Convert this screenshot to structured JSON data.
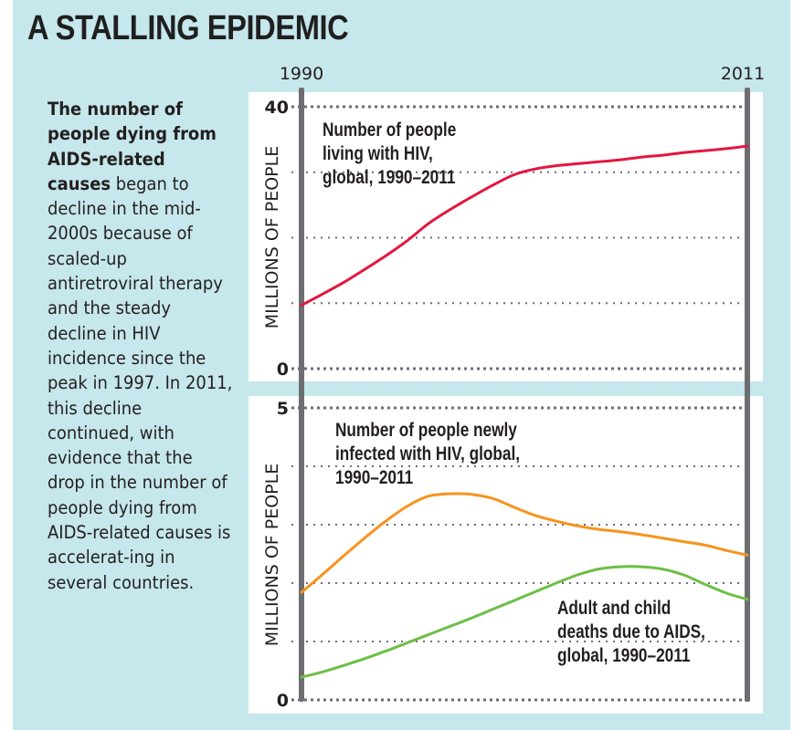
{
  "title": "A STALLING EPIDEMIC",
  "sidebar": {
    "bold_lead": "The number of people dying from AIDS-related causes",
    "body": " began to decline in the mid-2000s because of scaled-up antiretroviral therapy and the steady decline in HIV incidence since the peak in 1997. In 2011, this decline continued, with evidence that the drop in the number of people dying from AIDS-related causes is accelerat-ing in several countries."
  },
  "colors": {
    "background": "#c6e7eb",
    "panel": "#ffffff",
    "year_bar": "#6d6e71",
    "gridline": "#6d6e71",
    "living_with_hiv": "#e3173e",
    "new_infections": "#f7941d",
    "deaths": "#6cbe45",
    "text": "#231f20"
  },
  "chart_data": [
    {
      "type": "line",
      "title": "Number of people living with HIV, global, 1990–2011",
      "xlabel": "",
      "ylabel": "MILLIONS OF PEOPLE",
      "x_tick_labels": [
        "1990",
        "2011"
      ],
      "xlim": [
        1990,
        2011
      ],
      "ylim": [
        0,
        40
      ],
      "y_tick_labels": [
        "40",
        "0"
      ],
      "gridlines": [
        0,
        10,
        20,
        30,
        40
      ],
      "grid": true,
      "legend": "none",
      "annotations": [
        {
          "lines": [
            "Number of people",
            "living with HIV,",
            "global, 1990–2011"
          ],
          "placement": "top-left"
        }
      ],
      "x": [
        1990,
        1991,
        1992,
        1993,
        1994,
        1995,
        1996,
        1997,
        1998,
        1999,
        2000,
        2001,
        2002,
        2003,
        2004,
        2005,
        2006,
        2007,
        2008,
        2009,
        2010,
        2011
      ],
      "series": [
        {
          "name": "Number of people living with HIV",
          "color_key": "living_with_hiv",
          "values": [
            9.7,
            11.4,
            13.2,
            15.2,
            17.3,
            19.6,
            22.2,
            24.3,
            26.2,
            28.0,
            29.6,
            30.5,
            31.0,
            31.3,
            31.6,
            31.9,
            32.3,
            32.6,
            33.0,
            33.3,
            33.6,
            34.0
          ]
        }
      ]
    },
    {
      "type": "line",
      "title": "",
      "xlabel": "",
      "ylabel": "MILLIONS OF PEOPLE",
      "xlim": [
        1990,
        2011
      ],
      "ylim": [
        0,
        5
      ],
      "y_tick_labels": [
        "5",
        "0"
      ],
      "gridlines": [
        0,
        1,
        2,
        3,
        4,
        5
      ],
      "grid": true,
      "legend": "none",
      "annotations": [
        {
          "lines": [
            "Number of people newly",
            "infected with HIV, global,",
            "1990–2011"
          ],
          "placement": "top-center"
        },
        {
          "lines": [
            "Adult and child",
            "deaths due to AIDS,",
            "global, 1990–2011"
          ],
          "placement": "bottom-right"
        }
      ],
      "x": [
        1990,
        1991,
        1992,
        1993,
        1994,
        1995,
        1996,
        1997,
        1998,
        1999,
        2000,
        2001,
        2002,
        2003,
        2004,
        2005,
        2006,
        2007,
        2008,
        2009,
        2010,
        2011
      ],
      "series": [
        {
          "name": "Number of people newly infected with HIV",
          "color_key": "new_infections",
          "values": [
            1.84,
            2.15,
            2.47,
            2.78,
            3.07,
            3.32,
            3.49,
            3.53,
            3.52,
            3.45,
            3.3,
            3.16,
            3.06,
            2.98,
            2.92,
            2.88,
            2.83,
            2.77,
            2.71,
            2.65,
            2.56,
            2.48
          ]
        },
        {
          "name": "Adult and child deaths due to AIDS",
          "color_key": "deaths",
          "values": [
            0.39,
            0.48,
            0.59,
            0.71,
            0.84,
            0.98,
            1.12,
            1.26,
            1.4,
            1.55,
            1.7,
            1.85,
            2.0,
            2.14,
            2.24,
            2.28,
            2.28,
            2.24,
            2.14,
            1.98,
            1.83,
            1.72
          ]
        }
      ]
    }
  ]
}
